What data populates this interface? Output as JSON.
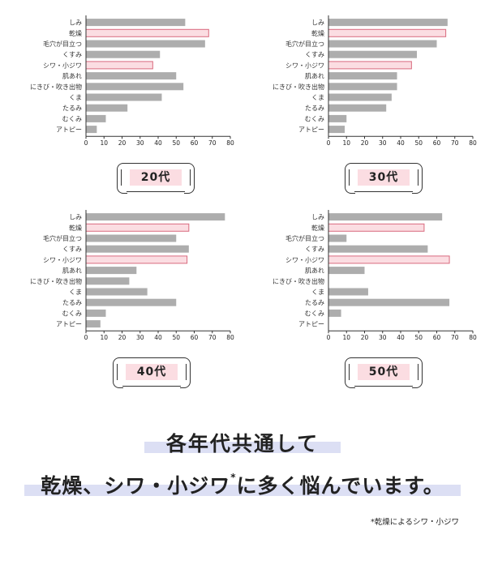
{
  "categories": [
    "しみ",
    "乾燥",
    "毛穴が目立つ",
    "くすみ",
    "シワ・小ジワ",
    "肌あれ",
    "にきび・吹き出物",
    "くま",
    "たるみ",
    "むくみ",
    "アトピー"
  ],
  "highlighted_categories": [
    "乾燥",
    "シワ・小ジワ"
  ],
  "colors": {
    "bar": "#adadad",
    "highlight_fill": "#fbdde2",
    "highlight_stroke": "#d96a7e",
    "headline_band": "#dcdff4"
  },
  "chart_data": [
    {
      "type": "bar",
      "orientation": "horizontal",
      "label": "20代",
      "categories": [
        "しみ",
        "乾燥",
        "毛穴が目立つ",
        "くすみ",
        "シワ・小ジワ",
        "肌あれ",
        "にきび・吹き出物",
        "くま",
        "たるみ",
        "むくみ",
        "アトピー"
      ],
      "values": [
        55,
        68,
        66,
        41,
        37,
        50,
        54,
        42,
        23,
        11,
        6
      ],
      "xlim": [
        0,
        80
      ],
      "xticks": [
        "0",
        "10",
        "20",
        "30",
        "40",
        "50",
        "60",
        "70",
        "80"
      ]
    },
    {
      "type": "bar",
      "orientation": "horizontal",
      "label": "30代",
      "categories": [
        "しみ",
        "乾燥",
        "毛穴が目立つ",
        "くすみ",
        "シワ・小ジワ",
        "肌あれ",
        "にきび・吹き出物",
        "くま",
        "たるみ",
        "むくみ",
        "アトピー"
      ],
      "values": [
        66,
        65,
        60,
        49,
        46,
        38,
        38,
        35,
        32,
        10,
        9
      ],
      "xlim": [
        0,
        80
      ],
      "xticks": [
        "0",
        "10",
        "20",
        "30",
        "40",
        "50",
        "60",
        "70",
        "80"
      ]
    },
    {
      "type": "bar",
      "orientation": "horizontal",
      "label": "40代",
      "categories": [
        "しみ",
        "乾燥",
        "毛穴が目立つ",
        "くすみ",
        "シワ・小ジワ",
        "肌あれ",
        "にきび・吹き出物",
        "くま",
        "たるみ",
        "むくみ",
        "アトピー"
      ],
      "values": [
        77,
        57,
        50,
        57,
        56,
        28,
        24,
        34,
        50,
        11,
        8
      ],
      "xlim": [
        0,
        80
      ],
      "xticks": [
        "0",
        "10",
        "20",
        "30",
        "40",
        "50",
        "60",
        "70",
        "80"
      ]
    },
    {
      "type": "bar",
      "orientation": "horizontal",
      "label": "50代",
      "categories": [
        "しみ",
        "乾燥",
        "毛穴が目立つ",
        "くすみ",
        "シワ・小ジワ",
        "肌あれ",
        "にきび・吹き出物",
        "くま",
        "たるみ",
        "むくみ",
        "アトピー"
      ],
      "values": [
        63,
        53,
        10,
        55,
        67,
        20,
        0,
        22,
        67,
        7,
        0
      ],
      "xlim": [
        0,
        80
      ],
      "xticks": [
        "0",
        "10",
        "20",
        "30",
        "40",
        "50",
        "60",
        "70",
        "80"
      ]
    }
  ],
  "headline": {
    "line1": "各年代共通して",
    "line2": "乾燥、シワ・小ジワ",
    "line2_mark": "*",
    "line2_rest": "に多く悩んでいます。"
  },
  "footnote": "*乾燥によるシワ・小ジワ"
}
